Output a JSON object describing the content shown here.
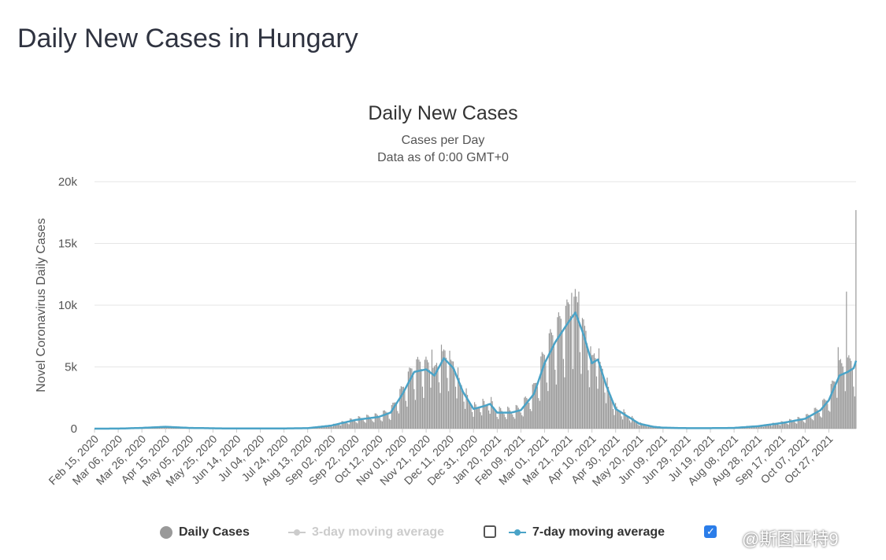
{
  "page": {
    "title": "Daily New Cases in Hungary"
  },
  "chart": {
    "title": "Daily New Cases",
    "subtitle1": "Cases per Day",
    "subtitle2": "Data as of 0:00 GMT+0"
  },
  "legend": {
    "daily": "Daily Cases",
    "ma3": "3-day moving average",
    "ma7": "7-day moving average"
  },
  "watermark": "@斯图亚特9",
  "colors": {
    "bars": "#999999",
    "ma7": "#4aa3c7",
    "grid": "#e6e6e6",
    "disabled": "#cccccc"
  },
  "chart_data": {
    "type": "bar",
    "ylabel": "Novel Coronavirus Daily Cases",
    "ylim": [
      0,
      20000
    ],
    "yticks": [
      "0",
      "5k",
      "10k",
      "15k",
      "20k"
    ],
    "ytick_values": [
      0,
      5000,
      10000,
      15000,
      20000
    ],
    "x_start": "2020-02-15",
    "x_end": "2021-11-19",
    "xtick_labels": [
      "Feb 15, 2020",
      "Mar 06, 2020",
      "Mar 26, 2020",
      "Apr 15, 2020",
      "May 05, 2020",
      "May 25, 2020",
      "Jun 14, 2020",
      "Jul 04, 2020",
      "Jul 24, 2020",
      "Aug 13, 2020",
      "Sep 02, 2020",
      "Sep 22, 2020",
      "Oct 12, 2020",
      "Nov 01, 2020",
      "Nov 21, 2020",
      "Dec 11, 2020",
      "Dec 31, 2020",
      "Jan 20, 2021",
      "Feb 09, 2021",
      "Mar 01, 2021",
      "Mar 21, 2021",
      "Apr 10, 2021",
      "Apr 30, 2021",
      "May 20, 2021",
      "Jun 09, 2021",
      "Jun 29, 2021",
      "Jul 19, 2021",
      "Aug 08, 2021",
      "Aug 28, 2021",
      "Sep 17, 2021",
      "Oct 07, 2021",
      "Oct 27, 2021"
    ],
    "series": [
      {
        "name": "7-day moving average",
        "points": [
          [
            "2020-02-15",
            0
          ],
          [
            "2020-03-06",
            5
          ],
          [
            "2020-03-26",
            60
          ],
          [
            "2020-04-15",
            150
          ],
          [
            "2020-05-05",
            60
          ],
          [
            "2020-05-25",
            30
          ],
          [
            "2020-06-14",
            10
          ],
          [
            "2020-07-04",
            15
          ],
          [
            "2020-07-24",
            20
          ],
          [
            "2020-08-13",
            40
          ],
          [
            "2020-09-02",
            250
          ],
          [
            "2020-09-22",
            700
          ],
          [
            "2020-10-12",
            950
          ],
          [
            "2020-10-22",
            1300
          ],
          [
            "2020-11-01",
            2800
          ],
          [
            "2020-11-11",
            4600
          ],
          [
            "2020-11-21",
            4800
          ],
          [
            "2020-11-28",
            4300
          ],
          [
            "2020-12-06",
            5700
          ],
          [
            "2020-12-14",
            4900
          ],
          [
            "2020-12-22",
            3000
          ],
          [
            "2020-12-31",
            1600
          ],
          [
            "2021-01-08",
            1800
          ],
          [
            "2021-01-14",
            2000
          ],
          [
            "2021-01-20",
            1300
          ],
          [
            "2021-02-01",
            1300
          ],
          [
            "2021-02-09",
            1500
          ],
          [
            "2021-02-20",
            2800
          ],
          [
            "2021-03-01",
            5300
          ],
          [
            "2021-03-10",
            7000
          ],
          [
            "2021-03-21",
            8600
          ],
          [
            "2021-03-27",
            9400
          ],
          [
            "2021-04-03",
            7600
          ],
          [
            "2021-04-10",
            5300
          ],
          [
            "2021-04-15",
            5600
          ],
          [
            "2021-04-22",
            3500
          ],
          [
            "2021-04-30",
            1600
          ],
          [
            "2021-05-10",
            1000
          ],
          [
            "2021-05-20",
            400
          ],
          [
            "2021-06-01",
            150
          ],
          [
            "2021-06-09",
            80
          ],
          [
            "2021-06-29",
            40
          ],
          [
            "2021-07-19",
            40
          ],
          [
            "2021-08-08",
            60
          ],
          [
            "2021-08-28",
            200
          ],
          [
            "2021-09-17",
            450
          ],
          [
            "2021-10-07",
            800
          ],
          [
            "2021-10-20",
            1500
          ],
          [
            "2021-10-27",
            2300
          ],
          [
            "2021-11-05",
            4300
          ],
          [
            "2021-11-12",
            4600
          ],
          [
            "2021-11-17",
            4900
          ],
          [
            "2021-11-19",
            5500
          ]
        ]
      },
      {
        "name": "Daily Cases",
        "notable_values": [
          [
            "2021-03-24",
            11000
          ],
          [
            "2021-03-30",
            11100
          ],
          [
            "2021-11-11",
            11100
          ],
          [
            "2021-11-19",
            17700
          ],
          [
            "2021-11-04",
            6600
          ],
          [
            "2020-11-26",
            6400
          ],
          [
            "2020-12-04",
            6800
          ]
        ]
      }
    ]
  }
}
